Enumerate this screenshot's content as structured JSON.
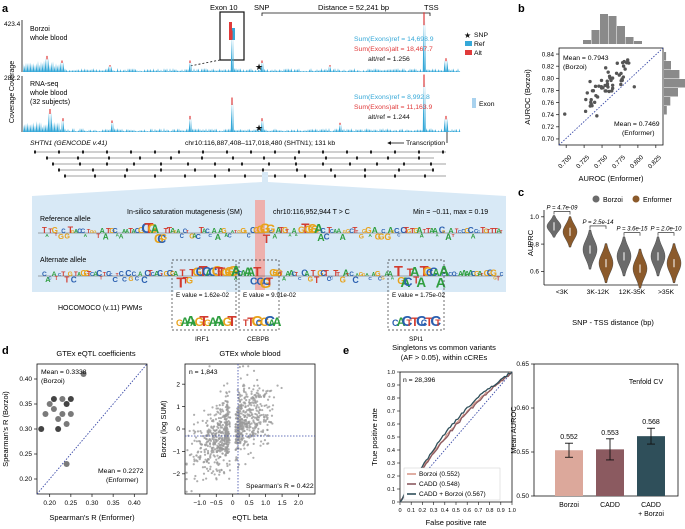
{
  "panel_labels": {
    "a": "a",
    "b": "b",
    "c": "c",
    "d": "d",
    "e": "e"
  },
  "colors": {
    "ref": "#35a8d8",
    "alt": "#e03a3a",
    "borzoi": "#6b6b6b",
    "enformer": "#8b5a2b",
    "cadd": "#8b5a60",
    "cadd_borzoi": "#2f4f5a",
    "blue_band": "#d8e9f6"
  },
  "panel_a": {
    "exon_label": "Exon 10",
    "snp_label": "SNP",
    "distance_label": "Distance = 52,241 bp",
    "tss_label": "TSS",
    "track1": {
      "max": "423.4",
      "ylabel": "Coverage",
      "name_line1": "Borzoi",
      "name_line2": "whole blood",
      "sum_ref": "Sum(Exons)ref = 14,698.9",
      "sum_alt": "Sum(Exons)alt = 18,467.7",
      "ratio": "alt/ref = 1.256"
    },
    "track2": {
      "max": "282.2",
      "ylabel": "Coverage",
      "name_line1": "RNA-seq",
      "name_line2": "whole blood",
      "name_line3": "(32 subjects)",
      "sum_ref": "Sum(Exons)ref = 8,992.8",
      "sum_alt": "Sum(Exons)alt = 11,163.9",
      "ratio": "alt/ref = 1.244"
    },
    "legend": {
      "snp": "SNP",
      "ref": "Ref",
      "alt": "Alt",
      "exon": "Exon"
    },
    "gene_label": "SHTN1 (GENCODE v.41)",
    "coords": "chr10:116,887,408–117,018,480 (SHTN1); 131 kb",
    "transcription": "Transcription",
    "ref_allele": "Reference allele",
    "sm_title": "In-silico saturation mutagenesis (SM)",
    "sm_coord": "chr10:116,952,944 T > C",
    "sm_range": "Min = −0.11, max = 0.19",
    "alt_allele": "Alternate allele",
    "hocomoco": "HOCOMOCO (v.11) PWMs",
    "motifs": [
      {
        "evalue": "E value = 1.62e-02",
        "name": "IRF1"
      },
      {
        "evalue": "E value = 9.91e-02",
        "name": "CEBPB"
      },
      {
        "evalue": "E value = 1.75e-02",
        "name": "SPI1"
      }
    ]
  },
  "panel_b": {
    "xlabel": "AUROC (Enformer)",
    "ylabel": "AUROC (Borzoi)",
    "mean_borzoi": "Mean = 0.7943",
    "mean_borzoi_sub": "(Borzoi)",
    "mean_enformer": "Mean = 0.7469",
    "mean_enformer_sub": "(Enformer)",
    "xticks": [
      "0.700",
      "0.725",
      "0.750",
      "0.775",
      "0.800",
      "0.825"
    ],
    "yticks": [
      "0.70",
      "0.72",
      "0.74",
      "0.76",
      "0.78",
      "0.80",
      "0.82",
      "0.84"
    ]
  },
  "panel_c": {
    "legend": [
      "Borzoi",
      "Enformer"
    ],
    "ylabel": "AUPRC",
    "xlabel": "SNP - TSS distance (bp)",
    "categories": [
      "<3K",
      "3K-12K",
      "12K-35K",
      ">35K"
    ],
    "pvalues": [
      "P = 4.7e-09",
      "P = 2.5e-14",
      "P = 3.6e-15",
      "P = 2.0e-10"
    ],
    "yticks": [
      "0.6",
      "0.8",
      "1.0"
    ]
  },
  "panel_d1": {
    "title": "GTEx eQTL coefficients",
    "xlabel": "Spearman's R (Enformer)",
    "ylabel": "Spearman's R (Borzoi)",
    "mean_borzoi": "Mean = 0.3338",
    "mean_borzoi_sub": "(Borzoi)",
    "mean_enformer": "Mean = 0.2272",
    "mean_enformer_sub": "(Enformer)",
    "xticks": [
      "0.20",
      "0.25",
      "0.30",
      "0.35",
      "0.40"
    ],
    "yticks": [
      "0.20",
      "0.25",
      "0.30",
      "0.35",
      "0.40"
    ]
  },
  "panel_d2": {
    "title": "GTEx whole blood",
    "n": "n = 1,843",
    "xlabel": "eQTL beta",
    "ylabel": "Borzoi (log SUM)",
    "spearman": "Spearman's R = 0.422",
    "xticks": [
      "−1.0",
      "−0.5",
      "0",
      "0.5",
      "1.0",
      "1.5",
      "2.0"
    ],
    "yticks": [
      "−2",
      "−1",
      "0",
      "1",
      "2"
    ]
  },
  "panel_e1": {
    "title_line1": "Singletons vs common variants",
    "title_line2": "(AF > 0.05), within cCREs",
    "n": "n = 28,396",
    "xlabel": "False positive rate",
    "ylabel": "True positive rate",
    "xticks": [
      "0",
      "0.1",
      "0.2",
      "0.3",
      "0.4",
      "0.5",
      "0.6",
      "0.7",
      "0.8",
      "0.9",
      "1.0"
    ],
    "yticks": [
      "0",
      "0.1",
      "0.2",
      "0.3",
      "0.4",
      "0.5",
      "0.6",
      "0.7",
      "0.8",
      "0.9",
      "1.0"
    ],
    "legend": [
      "Borzoi (0.552)",
      "CADD (0.548)",
      "CADD + Borzoi (0.567)"
    ]
  },
  "chart_data": {
    "type": "bar",
    "title": "Tenfold CV",
    "categories": [
      "Borzoi",
      "CADD",
      "CADD + Borzoi"
    ],
    "values": [
      0.552,
      0.553,
      0.568
    ],
    "value_labels": [
      "0.552",
      "0.553",
      "0.568"
    ],
    "errors": [
      0.008,
      0.012,
      0.009
    ],
    "ylabel": "Mean AUROC",
    "ylim": [
      0.5,
      0.65
    ],
    "yticks": [
      "0.50",
      "0.55",
      "0.60",
      "0.65"
    ],
    "colors": [
      "#dca89b",
      "#8b5a60",
      "#2f4f5a"
    ]
  }
}
